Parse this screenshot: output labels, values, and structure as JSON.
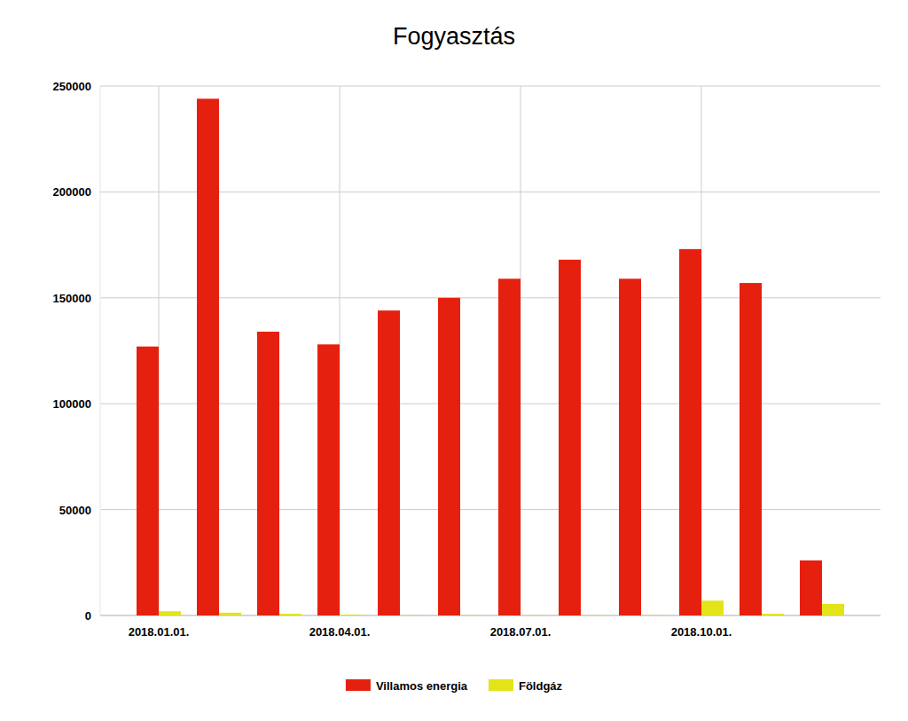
{
  "chart_data": {
    "type": "bar",
    "title": "Fogyasztás",
    "categories": [
      "2018.01.01.",
      null,
      null,
      "2018.04.01.",
      null,
      null,
      "2018.07.01.",
      null,
      null,
      "2018.10.01.",
      null,
      null
    ],
    "series": [
      {
        "name": "Villamos energia",
        "color": "#e6200e",
        "values": [
          127000,
          244000,
          134000,
          128000,
          144000,
          150000,
          159000,
          168000,
          159000,
          173000,
          157000,
          26000
        ]
      },
      {
        "name": "Földgáz",
        "color": "#e3e31a",
        "values": [
          2000,
          1300,
          800,
          400,
          100,
          100,
          100,
          100,
          100,
          7000,
          800,
          5500
        ]
      }
    ],
    "ylim": [
      0,
      250000
    ],
    "yticks": [
      0,
      50000,
      100000,
      150000,
      200000,
      250000
    ],
    "grid": true,
    "legend": "bottom"
  }
}
